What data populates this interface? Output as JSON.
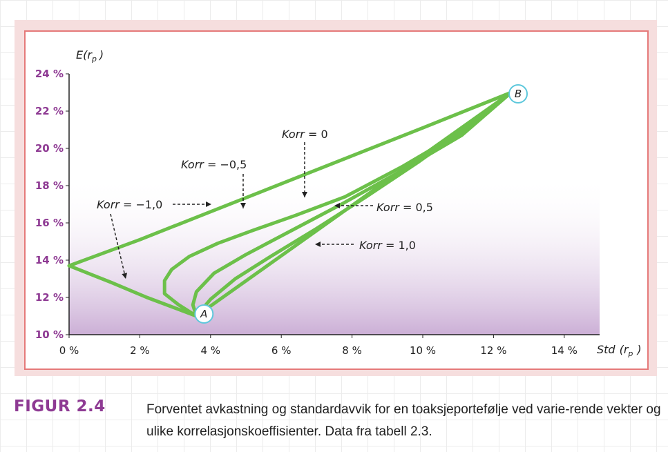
{
  "chart_data": {
    "type": "line",
    "xlabel": "Std (r_p)",
    "ylabel": "E(r_p)",
    "xlim": [
      0,
      0.15
    ],
    "ylim": [
      0.1,
      0.24
    ],
    "x_ticks": [
      "0 %",
      "2 %",
      "4 %",
      "6 %",
      "8 %",
      "10 %",
      "12 %",
      "14 %"
    ],
    "y_ticks": [
      "10 %",
      "12 %",
      "14 %",
      "16 %",
      "18 %",
      "20 %",
      "22 %",
      "24 %"
    ],
    "xlabel_main": "Std",
    "xlabel_sub": "(r",
    "xlabel_subscript": "p",
    "xlabel_close": ")",
    "ylabel_main": "E(r",
    "ylabel_subscript": "p",
    "ylabel_close": ")",
    "grid": false,
    "line_color": "#6cc04a",
    "series": [
      {
        "name": "Korr = −1,0",
        "x": [
          0.036,
          0.022,
          0.012,
          0.004,
          0.0,
          0.01,
          0.02,
          0.04,
          0.06,
          0.08,
          0.1,
          0.125
        ],
        "y": [
          0.11,
          0.12,
          0.128,
          0.134,
          0.137,
          0.144,
          0.151,
          0.166,
          0.181,
          0.196,
          0.211,
          0.23
        ]
      },
      {
        "name": "Korr = −0,5",
        "x": [
          0.036,
          0.031,
          0.027,
          0.027,
          0.029,
          0.034,
          0.042,
          0.052,
          0.064,
          0.078,
          0.094,
          0.111,
          0.125
        ],
        "y": [
          0.11,
          0.116,
          0.122,
          0.129,
          0.135,
          0.142,
          0.149,
          0.156,
          0.164,
          0.174,
          0.19,
          0.209,
          0.23
        ]
      },
      {
        "name": "Korr = 0",
        "x": [
          0.036,
          0.035,
          0.036,
          0.041,
          0.05,
          0.062,
          0.077,
          0.094,
          0.111,
          0.125
        ],
        "y": [
          0.11,
          0.116,
          0.123,
          0.133,
          0.143,
          0.155,
          0.17,
          0.188,
          0.207,
          0.23
        ]
      },
      {
        "name": "Korr = 0,5",
        "x": [
          0.036,
          0.04,
          0.047,
          0.057,
          0.07,
          0.084,
          0.099,
          0.113,
          0.125
        ],
        "y": [
          0.11,
          0.119,
          0.13,
          0.142,
          0.157,
          0.174,
          0.193,
          0.212,
          0.23
        ]
      },
      {
        "name": "Korr = 1,0",
        "x": [
          0.036,
          0.125
        ],
        "y": [
          0.11,
          0.23
        ]
      }
    ],
    "points": [
      {
        "label": "A",
        "x": 0.036,
        "y": 0.11
      },
      {
        "label": "B",
        "x": 0.125,
        "y": 0.23
      }
    ],
    "annotations": [
      {
        "text_italic": "Korr",
        "text_rest": " = 0"
      },
      {
        "text_italic": "Korr",
        "text_rest": " = −0,5"
      },
      {
        "text_italic": "Korr",
        "text_rest": " = −1,0"
      },
      {
        "text_italic": "Korr",
        "text_rest": " = 0,5"
      },
      {
        "text_italic": "Korr",
        "text_rest": " = 1,0"
      }
    ]
  },
  "caption": {
    "label": "FIGUR 2.4",
    "text": "Forventet avkastning og standardavvik for en toaksjeportefølje ved varie-rende vekter og ulike korrelasjonskoeffisienter. Data fra tabell 2.3."
  }
}
